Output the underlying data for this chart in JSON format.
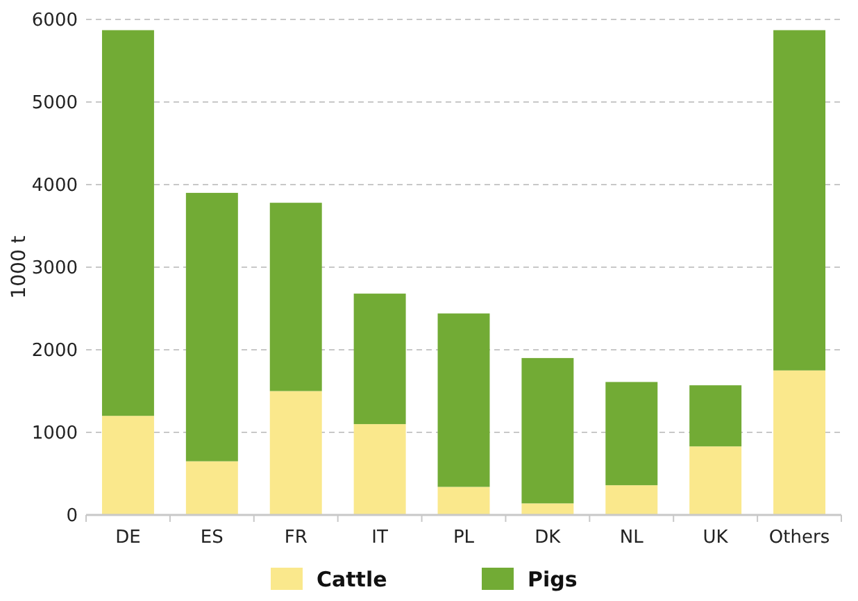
{
  "chart_data": {
    "type": "bar",
    "ylabel": "1000 t",
    "stacked": true,
    "categories": [
      "DE",
      "ES",
      "FR",
      "IT",
      "PL",
      "DK",
      "NL",
      "UK",
      "Others"
    ],
    "series": [
      {
        "name": "Cattle",
        "color": "#fae88c",
        "values": [
          1200,
          650,
          1500,
          1100,
          340,
          140,
          360,
          830,
          1750
        ]
      },
      {
        "name": "Pigs",
        "color": "#72ab35",
        "values": [
          4670,
          3250,
          2280,
          1580,
          2100,
          1760,
          1250,
          740,
          4120
        ]
      }
    ],
    "ylim": [
      0,
      6000
    ],
    "yticks": [
      0,
      1000,
      2000,
      3000,
      4000,
      5000,
      6000
    ],
    "grid": "y",
    "legend": "bottom"
  }
}
